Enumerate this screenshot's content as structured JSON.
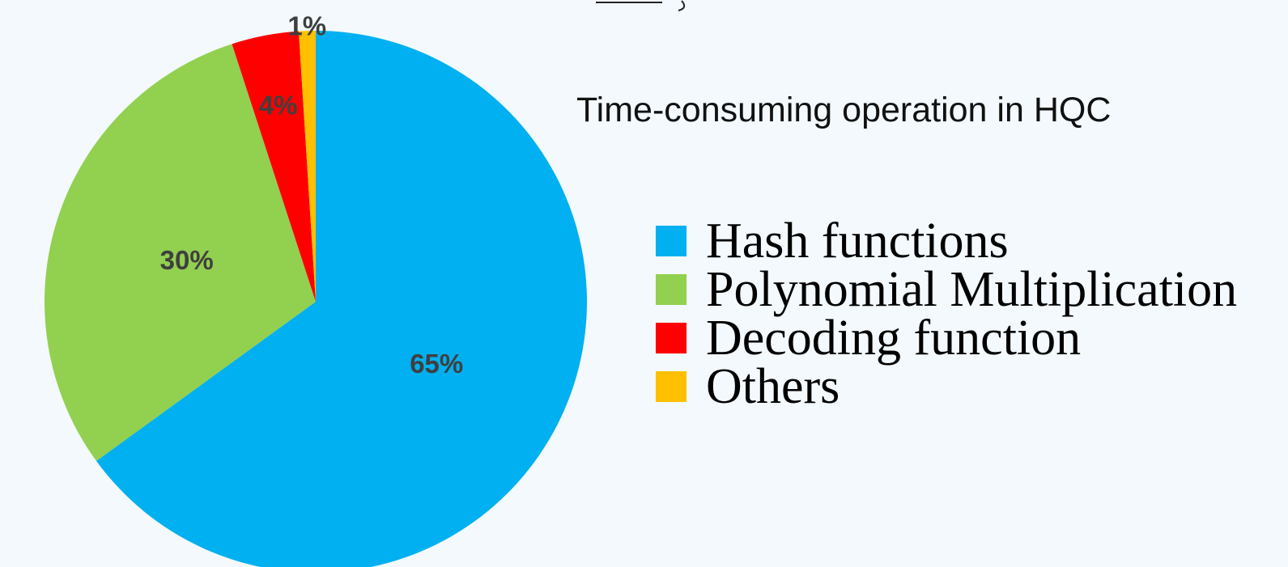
{
  "chart_data": {
    "type": "pie",
    "title": "Time-consuming operation in HQC",
    "series": [
      {
        "name": "Hash functions",
        "value": 65,
        "label": "65%",
        "color": "#00b0f0"
      },
      {
        "name": "Polynomial Multiplication",
        "value": 30,
        "label": "30%",
        "color": "#92d050"
      },
      {
        "name": "Decoding function",
        "value": 4,
        "label": "4%",
        "color": "#ff0000"
      },
      {
        "name": "Others",
        "value": 1,
        "label": "1%",
        "color": "#ffc000"
      }
    ],
    "start_angle": "12 o'clock",
    "direction": "clockwise",
    "legend_position": "right"
  }
}
